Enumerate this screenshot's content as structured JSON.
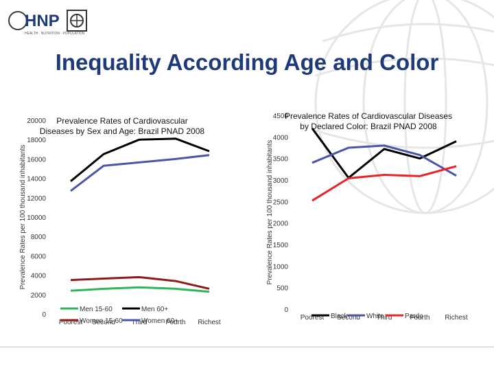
{
  "slide": {
    "title": "Inequality According Age and Color",
    "logo_text": "HNP",
    "logo_subtitle": "HEALTH · NUTRITION · POPULATION"
  },
  "colors": {
    "title": "#1f3a78",
    "black": "#000000",
    "blue": "#4a55a8",
    "green": "#2db556",
    "red": "#e8232a",
    "darkred": "#8e1a1d"
  },
  "chart_data": [
    {
      "type": "line",
      "title": "Prevalence Rates of Cardiovascular Diseases by Sex and Age: Brazil PNAD 2008",
      "ylabel": "Prevalence Rates per 100 thousand inhabitants",
      "xlabel": "",
      "categories": [
        "Poorest",
        "Second",
        "Third",
        "Fourth",
        "Richest"
      ],
      "ylim": [
        0,
        20000
      ],
      "yticks": [
        0,
        2000,
        4000,
        6000,
        8000,
        10000,
        12000,
        14000,
        16000,
        18000,
        20000
      ],
      "series": [
        {
          "name": "Men 15-60",
          "color": "#2db556",
          "values": [
            2400,
            2600,
            2750,
            2600,
            2300
          ]
        },
        {
          "name": "Men 60+",
          "color": "#000000",
          "values": [
            13700,
            16500,
            18000,
            18100,
            16800
          ]
        },
        {
          "name": "Women 15-60",
          "color": "#8e1a1d",
          "values": [
            3500,
            3650,
            3800,
            3400,
            2600
          ]
        },
        {
          "name": "Women 60+",
          "color": "#4a55a8",
          "values": [
            12700,
            15300,
            15650,
            16000,
            16400
          ]
        }
      ]
    },
    {
      "type": "line",
      "title": "Prevalence Rates of Cardiovascular Diseases by Declared Color: Brazil PNAD 2008",
      "ylabel": "Prevalence Rates per 100 thousand inhabitants",
      "xlabel": "",
      "categories": [
        "Poorest",
        "Second",
        "Third",
        "Fourth",
        "Richest"
      ],
      "ylim": [
        0,
        4500
      ],
      "yticks": [
        0,
        500,
        1000,
        1500,
        2000,
        2500,
        3000,
        3500,
        4000,
        4500
      ],
      "series": [
        {
          "name": "Black",
          "color": "#000000",
          "values": [
            4200,
            3050,
            3720,
            3500,
            3900
          ]
        },
        {
          "name": "White",
          "color": "#4a55a8",
          "values": [
            3400,
            3750,
            3800,
            3580,
            3100
          ]
        },
        {
          "name": "Pardo",
          "color": "#e8232a",
          "values": [
            2520,
            3040,
            3120,
            3090,
            3320
          ]
        }
      ]
    }
  ]
}
